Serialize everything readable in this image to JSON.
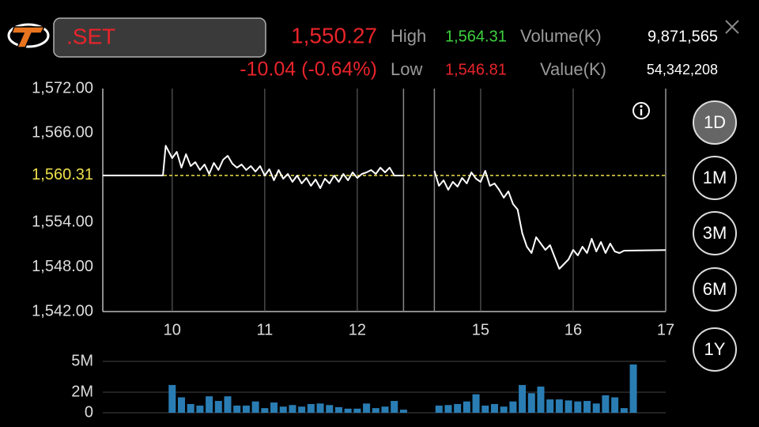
{
  "header": {
    "symbol": ".SET",
    "last": "1,550.27",
    "change": "-10.04 (-0.64%)",
    "high_label": "High",
    "high": "1,564.31",
    "low_label": "Low",
    "low": "1,546.81",
    "volume_label": "Volume(K)",
    "volume": "9,871,565",
    "value_label": "Value(K)",
    "value": "54,342,208"
  },
  "periods": {
    "items": [
      "1D",
      "1M",
      "3M",
      "6M",
      "1Y"
    ],
    "selected": 0
  },
  "chart_data": [
    {
      "type": "line",
      "x": [
        9.25,
        9.9,
        9.93,
        10,
        10.05,
        10.1,
        10.15,
        10.2,
        10.25,
        10.3,
        10.35,
        10.4,
        10.45,
        10.5,
        10.55,
        10.6,
        10.65,
        10.7,
        10.75,
        10.8,
        10.85,
        10.9,
        10.95,
        11,
        11.05,
        11.1,
        11.15,
        11.2,
        11.25,
        11.3,
        11.35,
        11.4,
        11.45,
        11.5,
        11.55,
        11.6,
        11.65,
        11.7,
        11.75,
        11.8,
        11.85,
        11.9,
        11.95,
        12,
        12.05,
        12.1,
        12.15,
        12.2,
        12.25,
        12.3,
        12.35,
        12.4,
        12.5,
        null,
        14.5,
        14.55,
        14.6,
        14.65,
        14.7,
        14.75,
        14.8,
        14.85,
        14.9,
        14.95,
        15,
        15.05,
        15.1,
        15.15,
        15.2,
        15.25,
        15.3,
        15.35,
        15.4,
        15.45,
        15.5,
        15.55,
        15.6,
        15.65,
        15.7,
        15.75,
        15.8,
        15.85,
        15.9,
        15.95,
        16,
        16.05,
        16.1,
        16.15,
        16.2,
        16.25,
        16.3,
        16.35,
        16.4,
        16.45,
        16.5,
        16.55,
        17
      ],
      "series": [
        {
          "color": "#ffffff",
          "values": [
            1560.31,
            1560.31,
            1564.31,
            1562.64,
            1563.49,
            1561.36,
            1563.17,
            1561.57,
            1562.11,
            1561.04,
            1561.79,
            1560.51,
            1562.0,
            1561.04,
            1562.43,
            1562.96,
            1561.89,
            1561.36,
            1561.79,
            1561.04,
            1561.57,
            1560.83,
            1561.57,
            1560.3,
            1561.15,
            1559.66,
            1561.04,
            1559.87,
            1560.51,
            1559.45,
            1560.3,
            1559.23,
            1559.98,
            1558.91,
            1559.77,
            1558.6,
            1559.87,
            1559.23,
            1560.3,
            1559.45,
            1560.51,
            1559.66,
            1560.72,
            1559.98,
            1560.51,
            1560.72,
            1561.04,
            1560.51,
            1561.36,
            1560.72,
            1561.36,
            1560.3,
            1560.3,
            null,
            1560.94,
            1558.91,
            1559.66,
            1558.38,
            1559.45,
            1558.81,
            1559.98,
            1559.23,
            1560.72,
            1559.87,
            1559.45,
            1560.94,
            1558.91,
            1559.23,
            1558.38,
            1557.32,
            1558.17,
            1556.47,
            1555.72,
            1552.53,
            1550.72,
            1549.87,
            1552.0,
            1551.15,
            1550.3,
            1550.94,
            1549.34,
            1547.74,
            1548.38,
            1549.02,
            1550.3,
            1549.55,
            1550.72,
            1549.87,
            1551.79,
            1550.09,
            1551.36,
            1549.87,
            1551.15,
            1550.09,
            1549.87,
            1550.19,
            1550.27
          ]
        }
      ],
      "xlim": [
        9.25,
        17
      ],
      "xbreak": [
        12.5,
        14.5
      ],
      "xticks": [
        10,
        11,
        12,
        15,
        16,
        17
      ],
      "ylim": [
        1542,
        1572
      ],
      "yticks": [
        {
          "value": 1542,
          "label": "1,542.00"
        },
        {
          "value": 1548,
          "label": "1,548.00"
        },
        {
          "value": 1554,
          "label": "1,554.00"
        },
        {
          "value": 1566,
          "label": "1,566.00"
        },
        {
          "value": 1572,
          "label": "1,572.00"
        }
      ],
      "ref_line": {
        "value": 1560.31,
        "label": "1,560.31",
        "color": "#ede04a"
      }
    },
    {
      "type": "bar",
      "x": [
        10,
        10.1,
        10.2,
        10.3,
        10.4,
        10.5,
        10.6,
        10.7,
        10.8,
        10.9,
        11,
        11.1,
        11.2,
        11.3,
        11.4,
        11.5,
        11.6,
        11.7,
        11.8,
        11.9,
        12,
        12.1,
        12.2,
        12.3,
        12.4,
        12.5,
        14.55,
        14.65,
        14.75,
        14.85,
        14.95,
        15.05,
        15.15,
        15.25,
        15.35,
        15.45,
        15.55,
        15.65,
        15.75,
        15.85,
        15.95,
        16.05,
        16.15,
        16.25,
        16.35,
        16.45,
        16.55,
        16.65
      ],
      "values": [
        2.7,
        1.5,
        0.85,
        0.7,
        1.6,
        1.15,
        1.6,
        0.7,
        0.7,
        1.1,
        0.45,
        1.0,
        0.6,
        0.75,
        0.6,
        0.85,
        0.9,
        0.75,
        0.55,
        0.4,
        0.4,
        0.9,
        0.45,
        0.6,
        1.15,
        0.3,
        0.7,
        0.75,
        0.85,
        1.1,
        1.8,
        0.7,
        0.85,
        0.6,
        1.1,
        2.7,
        1.9,
        2.55,
        1.3,
        1.3,
        1.2,
        1.1,
        1.15,
        0.9,
        1.7,
        1.5,
        0.45,
        4.7
      ],
      "color": "#2a7db3",
      "xlim": [
        9.25,
        17
      ],
      "xbreak": [
        12.5,
        14.5
      ],
      "ylim": [
        0,
        5
      ],
      "yticks": [
        {
          "value": 5,
          "label": "5M"
        },
        {
          "value": 2,
          "label": "2M"
        },
        0
      ]
    }
  ]
}
